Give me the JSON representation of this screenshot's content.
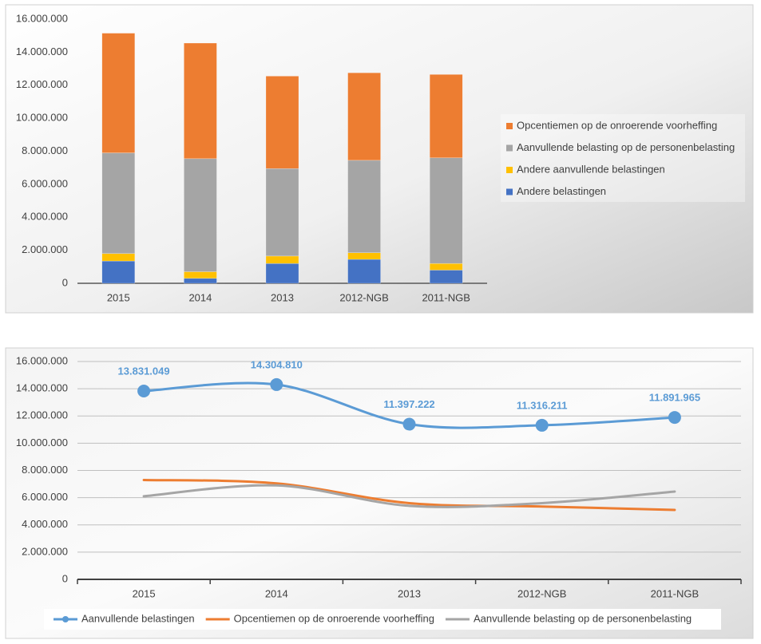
{
  "chart_data": [
    {
      "type": "bar",
      "stacked": true,
      "categories": [
        "2015",
        "2014",
        "2013",
        "2012-NGB",
        "2011-NGB"
      ],
      "series": [
        {
          "name": "Andere belastingen",
          "color": "#4472c4",
          "values": [
            1350000,
            300000,
            1200000,
            1450000,
            800000
          ]
        },
        {
          "name": "Andere aanvullende belastingen",
          "color": "#ffc000",
          "values": [
            450000,
            400000,
            450000,
            400000,
            400000
          ]
        },
        {
          "name": "Aanvullende belasting op de personenbelasting",
          "color": "#a5a5a5",
          "values": [
            6100000,
            6850000,
            5300000,
            5600000,
            6400000
          ]
        },
        {
          "name": "Opcentiemen op de onroerende voorheffing",
          "color": "#ed7d31",
          "values": [
            7250000,
            7000000,
            5600000,
            5300000,
            5050000
          ]
        }
      ],
      "ylim": [
        0,
        16000000
      ],
      "yticks": [
        0,
        {
          "value": 2000000,
          "label": "2.000.000"
        },
        {
          "value": 4000000,
          "label": "4.000.000"
        },
        {
          "value": 6000000,
          "label": "6.000.000"
        },
        {
          "value": 8000000,
          "label": "8.000.000"
        },
        {
          "value": 10000000,
          "label": "10.000.000"
        },
        {
          "value": 12000000,
          "label": "12.000.000"
        },
        {
          "value": 14000000,
          "label": "14.000.000"
        },
        {
          "value": 16000000,
          "label": "16.000.000"
        }
      ],
      "grid": false,
      "legend": "right"
    },
    {
      "type": "line",
      "smooth": true,
      "categories": [
        "2015",
        "2014",
        "2013",
        "2012-NGB",
        "2011-NGB"
      ],
      "series": [
        {
          "name": "Aanvullende belastingen",
          "color": "#5b9bd5",
          "marker": true,
          "values": [
            13831049,
            14304810,
            11397222,
            11316211,
            11891965
          ],
          "value_labels": [
            "13.831.049",
            "14.304.810",
            "11.397.222",
            "11.316.211",
            "11.891.965"
          ]
        },
        {
          "name": "Opcentiemen op de onroerende voorheffing",
          "color": "#ed7d31",
          "values": [
            7300000,
            7050000,
            5600000,
            5350000,
            5100000
          ]
        },
        {
          "name": "Aanvullende belasting op de personenbelasting",
          "color": "#a5a5a5",
          "values": [
            6100000,
            6900000,
            5400000,
            5600000,
            6450000
          ]
        }
      ],
      "ylim": [
        0,
        16000000
      ],
      "yticks": [
        0,
        {
          "value": 2000000,
          "label": "2.000.000"
        },
        {
          "value": 4000000,
          "label": "4.000.000"
        },
        {
          "value": 6000000,
          "label": "6.000.000"
        },
        {
          "value": 8000000,
          "label": "8.000.000"
        },
        {
          "value": 10000000,
          "label": "10.000.000"
        },
        {
          "value": 12000000,
          "label": "12.000.000"
        },
        {
          "value": 14000000,
          "label": "14.000.000"
        },
        {
          "value": 16000000,
          "label": "16.000.000"
        }
      ],
      "grid": true,
      "legend": "bottom"
    }
  ]
}
